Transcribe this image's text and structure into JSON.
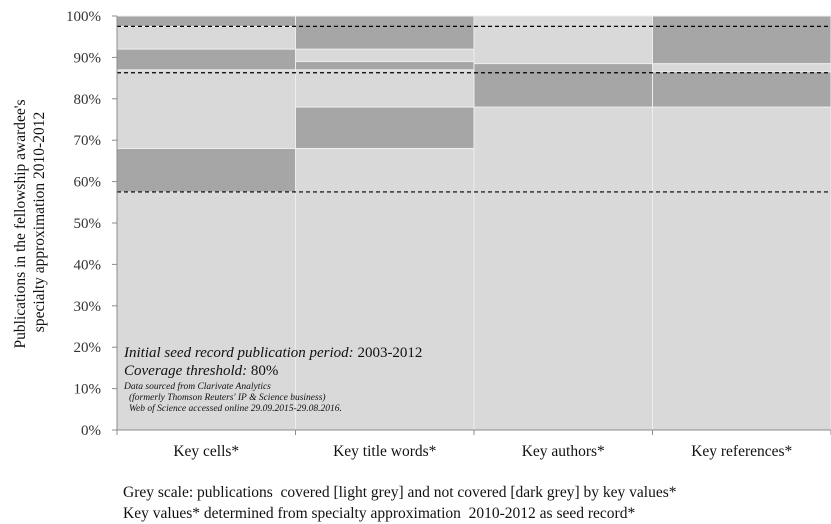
{
  "chart_data": {
    "type": "bar",
    "ylabel": [
      "Publications in the fellowship awardee's",
      "specialty approximation 2010-2012"
    ],
    "ylim": [
      0,
      100
    ],
    "yticks": [
      "0%",
      "10%",
      "20%",
      "30%",
      "40%",
      "50%",
      "60%",
      "70%",
      "80%",
      "90%",
      "100%"
    ],
    "categories": [
      "Key cells*",
      "Key title  words*",
      "Key authors*",
      "Key references*"
    ],
    "colors": {
      "covered": "#d9d9d9",
      "not_covered": "#a6a6a6",
      "segment_edge": "#ededed",
      "threshold_line": "#000000"
    },
    "series": [
      {
        "name": "covered [light grey]",
        "segments": [
          [
            [
              0,
              57.5
            ],
            [
              68,
              87
            ],
            [
              92,
              97.5
            ]
          ],
          [
            [
              0,
              68
            ],
            [
              78,
              87
            ],
            [
              89,
              92
            ]
          ],
          [
            [
              0,
              78
            ],
            [
              88.5,
              100
            ]
          ],
          [
            [
              0,
              78
            ],
            [
              86.5,
              88.5
            ]
          ]
        ]
      },
      {
        "name": "not covered [dark grey]",
        "segments": [
          [
            [
              57.5,
              68
            ],
            [
              87,
              92
            ],
            [
              97.5,
              100
            ]
          ],
          [
            [
              68,
              78
            ],
            [
              87,
              89
            ],
            [
              92,
              100
            ]
          ],
          [
            [
              78,
              88.5
            ]
          ],
          [
            [
              78,
              86.5
            ],
            [
              88.5,
              100
            ]
          ]
        ]
      }
    ],
    "threshold_lines": [
      57.5,
      86.3,
      97.5
    ],
    "grid": false
  },
  "annotation": {
    "period_label": "Initial seed record publication period:",
    "period_value": "2003-2012",
    "threshold_label": "Coverage threshold:",
    "threshold_value": "80%",
    "source_lines": [
      "Data sourced from Clarivate Analytics",
      "(formerly Thomson Reuters' IP & Science business)",
      "Web of Science accessed online 29.09.2015-29.08.2016."
    ]
  },
  "caption_lines": [
    "Grey scale: publications  covered [light grey] and not covered [dark grey] by key values*",
    "Key values* determined from specialty approximation  2010-2012 as seed record*"
  ]
}
